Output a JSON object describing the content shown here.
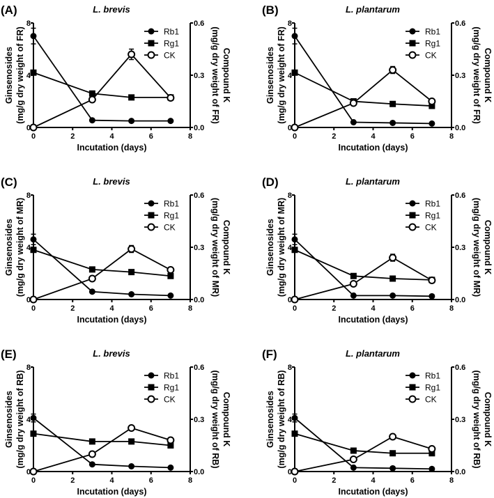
{
  "chart_data": [
    {
      "type": "line",
      "panel": "(A)",
      "title": "L. brevis",
      "xlabel": "Incutation (days)",
      "ylabel": [
        "Ginsenosides",
        "(mg/g dry weight of FR)"
      ],
      "y2label": [
        "Compound K",
        "(mg/g dry weight of FR)"
      ],
      "x": [
        0,
        3,
        5,
        7
      ],
      "xlim": [
        0,
        8
      ],
      "xticks": [
        "0",
        "2",
        "4",
        "6",
        "8"
      ],
      "ylim": [
        0,
        8
      ],
      "yticks": [
        "0",
        "4",
        "8"
      ],
      "y2lim": [
        0,
        0.6
      ],
      "y2ticks": [
        "0.0",
        "0.3",
        "0.6"
      ],
      "legend": "top-right",
      "series": [
        {
          "name": "Rb1",
          "marker": "circle-filled",
          "axis": "left",
          "values": [
            7.0,
            0.55,
            0.5,
            0.5
          ],
          "errors": [
            0.6,
            0,
            0,
            0
          ]
        },
        {
          "name": "Rg1",
          "marker": "square-filled",
          "axis": "left",
          "values": [
            4.2,
            2.6,
            2.3,
            2.3
          ],
          "errors": [
            0.1,
            0.1,
            0.05,
            0.05
          ]
        },
        {
          "name": "CK",
          "marker": "circle-open",
          "axis": "right",
          "values": [
            0,
            0.16,
            0.42,
            0.17
          ],
          "errors": [
            0,
            0.01,
            0.03,
            0.01
          ]
        }
      ]
    },
    {
      "type": "line",
      "panel": "(B)",
      "title": "L. plantarum",
      "xlabel": "Incutation (days)",
      "ylabel": [
        "Ginsenosides",
        "(mg/g dry weight of FR)"
      ],
      "y2label": [
        "Compound K",
        "(mg/g dry weight of FR)"
      ],
      "x": [
        0,
        3,
        5,
        7
      ],
      "xlim": [
        0,
        8
      ],
      "xticks": [
        "0",
        "2",
        "4",
        "6",
        "8"
      ],
      "ylim": [
        0,
        8
      ],
      "yticks": [
        "0",
        "4",
        "8"
      ],
      "y2lim": [
        0,
        0.6
      ],
      "y2ticks": [
        "0.0",
        "0.3",
        "0.6"
      ],
      "legend": "top-right",
      "series": [
        {
          "name": "Rb1",
          "marker": "circle-filled",
          "axis": "left",
          "values": [
            7.0,
            0.4,
            0.35,
            0.3
          ],
          "errors": [
            0.6,
            0,
            0,
            0
          ]
        },
        {
          "name": "Rg1",
          "marker": "square-filled",
          "axis": "left",
          "values": [
            4.2,
            2.0,
            1.8,
            1.65
          ],
          "errors": [
            0.1,
            0.1,
            0.05,
            0.05
          ]
        },
        {
          "name": "CK",
          "marker": "circle-open",
          "axis": "right",
          "values": [
            0,
            0.14,
            0.33,
            0.15
          ],
          "errors": [
            0,
            0.01,
            0.02,
            0.01
          ]
        }
      ]
    },
    {
      "type": "line",
      "panel": "(C)",
      "title": "L. brevis",
      "xlabel": "Incutation (days)",
      "ylabel": [
        "Ginsenosides",
        "(mg/g dry weight of MR)"
      ],
      "y2label": [
        "Compound K",
        "(mg/g dry weight of MR)"
      ],
      "x": [
        0,
        3,
        5,
        7
      ],
      "xlim": [
        0,
        8
      ],
      "xticks": [
        "0",
        "2",
        "4",
        "6",
        "8"
      ],
      "ylim": [
        0,
        8
      ],
      "yticks": [
        "0",
        "4",
        "8"
      ],
      "y2lim": [
        0,
        0.6
      ],
      "y2ticks": [
        "0.0",
        "0.3",
        "0.6"
      ],
      "legend": "top-right",
      "series": [
        {
          "name": "Rb1",
          "marker": "circle-filled",
          "axis": "left",
          "values": [
            4.6,
            0.6,
            0.4,
            0.3
          ],
          "errors": [
            0.4,
            0,
            0,
            0
          ]
        },
        {
          "name": "Rg1",
          "marker": "square-filled",
          "axis": "left",
          "values": [
            3.8,
            2.3,
            2.1,
            1.8
          ],
          "errors": [
            0.1,
            0.05,
            0.05,
            0.05
          ]
        },
        {
          "name": "CK",
          "marker": "circle-open",
          "axis": "right",
          "values": [
            0,
            0.12,
            0.29,
            0.17
          ],
          "errors": [
            0,
            0.01,
            0.02,
            0.01
          ]
        }
      ]
    },
    {
      "type": "line",
      "panel": "(D)",
      "title": "L. plantarum",
      "xlabel": "Incutation (days)",
      "ylabel": [
        "Ginsenosides",
        "(mg/g dry weight of MR)"
      ],
      "y2label": [
        "Compound K",
        "(mg/g dry weight of MR)"
      ],
      "x": [
        0,
        3,
        5,
        7
      ],
      "xlim": [
        0,
        8
      ],
      "xticks": [
        "0",
        "2",
        "4",
        "6",
        "8"
      ],
      "ylim": [
        0,
        8
      ],
      "yticks": [
        "0",
        "4",
        "8"
      ],
      "y2lim": [
        0,
        0.6
      ],
      "y2ticks": [
        "0.0",
        "0.3",
        "0.6"
      ],
      "legend": "top-right",
      "series": [
        {
          "name": "Rb1",
          "marker": "circle-filled",
          "axis": "left",
          "values": [
            4.6,
            0.3,
            0.3,
            0.25
          ],
          "errors": [
            0.4,
            0,
            0,
            0
          ]
        },
        {
          "name": "Rg1",
          "marker": "square-filled",
          "axis": "left",
          "values": [
            3.8,
            1.8,
            1.6,
            1.5
          ],
          "errors": [
            0.1,
            0.05,
            0.05,
            0.05
          ]
        },
        {
          "name": "CK",
          "marker": "circle-open",
          "axis": "right",
          "values": [
            0,
            0.09,
            0.24,
            0.11
          ],
          "errors": [
            0,
            0.01,
            0.02,
            0.01
          ]
        }
      ]
    },
    {
      "type": "line",
      "panel": "(E)",
      "title": "L. brevis",
      "xlabel": "Incutation (days)",
      "ylabel": [
        "Ginsenosides",
        "(mg/g dry weight of RB)"
      ],
      "y2label": [
        "Compound K",
        "(mg/g dry weight of RB)"
      ],
      "x": [
        0,
        3,
        5,
        7
      ],
      "xlim": [
        0,
        8
      ],
      "xticks": [
        "0",
        "2",
        "4",
        "6",
        "8"
      ],
      "ylim": [
        0,
        8
      ],
      "yticks": [
        "0",
        "4",
        "8"
      ],
      "y2lim": [
        0,
        0.6
      ],
      "y2ticks": [
        "0.0",
        "0.3",
        "0.6"
      ],
      "legend": "top-right",
      "series": [
        {
          "name": "Rb1",
          "marker": "circle-filled",
          "axis": "left",
          "values": [
            4.1,
            0.55,
            0.4,
            0.3
          ],
          "errors": [
            0.3,
            0,
            0,
            0
          ]
        },
        {
          "name": "Rg1",
          "marker": "square-filled",
          "axis": "left",
          "values": [
            2.9,
            2.3,
            2.3,
            2.0
          ],
          "errors": [
            0.1,
            0.05,
            0.05,
            0.05
          ]
        },
        {
          "name": "CK",
          "marker": "circle-open",
          "axis": "right",
          "values": [
            0,
            0.1,
            0.25,
            0.18
          ],
          "errors": [
            0,
            0.01,
            0.01,
            0.01
          ]
        }
      ]
    },
    {
      "type": "line",
      "panel": "(F)",
      "title": "L. plantarum",
      "xlabel": "Incutation (days)",
      "ylabel": [
        "Ginsenosides",
        "(mg/g dry weight of RB)"
      ],
      "y2label": [
        "Compound K",
        "(mg/g dry weight of RB)"
      ],
      "x": [
        0,
        3,
        5,
        7
      ],
      "xlim": [
        0,
        8
      ],
      "xticks": [
        "0",
        "2",
        "4",
        "6",
        "8"
      ],
      "ylim": [
        0,
        8
      ],
      "yticks": [
        "0",
        "4",
        "8"
      ],
      "y2lim": [
        0,
        0.6
      ],
      "y2ticks": [
        "0.0",
        "0.3",
        "0.6"
      ],
      "legend": "top-right",
      "series": [
        {
          "name": "Rb1",
          "marker": "circle-filled",
          "axis": "left",
          "values": [
            4.1,
            0.3,
            0.25,
            0.2
          ],
          "errors": [
            0.3,
            0,
            0,
            0
          ]
        },
        {
          "name": "Rg1",
          "marker": "square-filled",
          "axis": "left",
          "values": [
            2.9,
            1.6,
            1.4,
            1.4
          ],
          "errors": [
            0.1,
            0.05,
            0.05,
            0.05
          ]
        },
        {
          "name": "CK",
          "marker": "circle-open",
          "axis": "right",
          "values": [
            0,
            0.07,
            0.2,
            0.13
          ],
          "errors": [
            0,
            0.01,
            0.01,
            0.01
          ]
        }
      ]
    }
  ]
}
